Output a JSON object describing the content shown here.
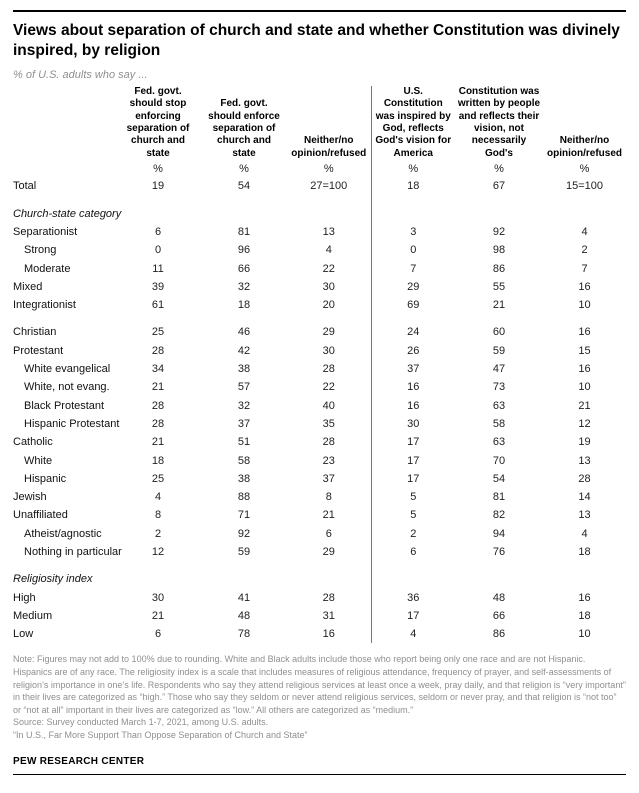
{
  "page": {
    "footer": "PEW RESEARCH CENTER"
  },
  "chart_data": {
    "type": "table",
    "title": "Views about separation of church and state and whether Constitution was divinely inspired, by religion",
    "subtitle": "% of U.S. adults who say ...",
    "columns": [
      "Fed. govt.\nshould stop\nenforcing\nseparation of\nchurch and\nstate",
      "Fed. govt.\nshould enforce\nseparation of\nchurch and\nstate",
      "Neither/no\nopinion/refused",
      "U.S.\nConstitution\nwas inspired by\nGod, reflects\nGod's vision for\nAmerica",
      "Constitution was\nwritten by people\nand reflects their\nvision, not\nnecessarily\nGod's",
      "Neither/no\nopinion/refused"
    ],
    "units": [
      "%",
      "%",
      "%",
      "%",
      "%",
      "%"
    ],
    "rows": [
      {
        "type": "data",
        "label": "Total",
        "indent": 0,
        "values": [
          "19",
          "54",
          "27=100",
          "18",
          "67",
          "15=100"
        ]
      },
      {
        "type": "spacer"
      },
      {
        "type": "section",
        "label": "Church-state category"
      },
      {
        "type": "data",
        "label": "Separationist",
        "indent": 0,
        "values": [
          "6",
          "81",
          "13",
          "3",
          "92",
          "4"
        ]
      },
      {
        "type": "data",
        "label": "Strong",
        "indent": 1,
        "values": [
          "0",
          "96",
          "4",
          "0",
          "98",
          "2"
        ]
      },
      {
        "type": "data",
        "label": "Moderate",
        "indent": 1,
        "values": [
          "11",
          "66",
          "22",
          "7",
          "86",
          "7"
        ]
      },
      {
        "type": "data",
        "label": "Mixed",
        "indent": 0,
        "values": [
          "39",
          "32",
          "30",
          "29",
          "55",
          "16"
        ]
      },
      {
        "type": "data",
        "label": "Integrationist",
        "indent": 0,
        "values": [
          "61",
          "18",
          "20",
          "69",
          "21",
          "10"
        ]
      },
      {
        "type": "spacer"
      },
      {
        "type": "data",
        "label": "Christian",
        "indent": 0,
        "values": [
          "25",
          "46",
          "29",
          "24",
          "60",
          "16"
        ]
      },
      {
        "type": "data",
        "label": "Protestant",
        "indent": 0,
        "values": [
          "28",
          "42",
          "30",
          "26",
          "59",
          "15"
        ]
      },
      {
        "type": "data",
        "label": "White evangelical",
        "indent": 1,
        "values": [
          "34",
          "38",
          "28",
          "37",
          "47",
          "16"
        ]
      },
      {
        "type": "data",
        "label": "White, not evang.",
        "indent": 1,
        "values": [
          "21",
          "57",
          "22",
          "16",
          "73",
          "10"
        ]
      },
      {
        "type": "data",
        "label": "Black Protestant",
        "indent": 1,
        "values": [
          "28",
          "32",
          "40",
          "16",
          "63",
          "21"
        ]
      },
      {
        "type": "data",
        "label": "Hispanic Protestant",
        "indent": 1,
        "values": [
          "28",
          "37",
          "35",
          "30",
          "58",
          "12"
        ]
      },
      {
        "type": "data",
        "label": "Catholic",
        "indent": 0,
        "values": [
          "21",
          "51",
          "28",
          "17",
          "63",
          "19"
        ]
      },
      {
        "type": "data",
        "label": "White",
        "indent": 1,
        "values": [
          "18",
          "58",
          "23",
          "17",
          "70",
          "13"
        ]
      },
      {
        "type": "data",
        "label": "Hispanic",
        "indent": 1,
        "values": [
          "25",
          "38",
          "37",
          "17",
          "54",
          "28"
        ]
      },
      {
        "type": "data",
        "label": "Jewish",
        "indent": 0,
        "values": [
          "4",
          "88",
          "8",
          "5",
          "81",
          "14"
        ]
      },
      {
        "type": "data",
        "label": "Unaffiliated",
        "indent": 0,
        "values": [
          "8",
          "71",
          "21",
          "5",
          "82",
          "13"
        ]
      },
      {
        "type": "data",
        "label": "Atheist/agnostic",
        "indent": 1,
        "values": [
          "2",
          "92",
          "6",
          "2",
          "94",
          "4"
        ]
      },
      {
        "type": "data",
        "label": "Nothing in particular",
        "indent": 1,
        "values": [
          "12",
          "59",
          "29",
          "6",
          "76",
          "18"
        ]
      },
      {
        "type": "spacer"
      },
      {
        "type": "section",
        "label": "Religiosity index"
      },
      {
        "type": "data",
        "label": "High",
        "indent": 0,
        "values": [
          "30",
          "41",
          "28",
          "36",
          "48",
          "16"
        ]
      },
      {
        "type": "data",
        "label": "Medium",
        "indent": 0,
        "values": [
          "21",
          "48",
          "31",
          "17",
          "66",
          "18"
        ]
      },
      {
        "type": "data",
        "label": "Low",
        "indent": 0,
        "values": [
          "6",
          "78",
          "16",
          "4",
          "86",
          "10"
        ]
      }
    ]
  },
  "notes": [
    "Note: Figures may not add to 100% due to rounding. White and Black adults include those who report being only one race and are not Hispanic. Hispanics are of any race. The religiosity index is a scale that includes measures of religious attendance, frequency of prayer, and self-assessments of religion’s importance in one’s life. Respondents who say they attend religious services at least once a week, pray daily, and that religion is “very important” in their lives are categorized as “high.” Those who say they seldom or never attend religious services, seldom or never pray, and that religion is “not too” or “not at all” important in their lives are categorized as “low.” All others are categorized as “medium.”",
    "Source: Survey conducted March 1-7, 2021, among U.S. adults.",
    "“In U.S., Far More Support Than Oppose Separation of Church and State”"
  ]
}
